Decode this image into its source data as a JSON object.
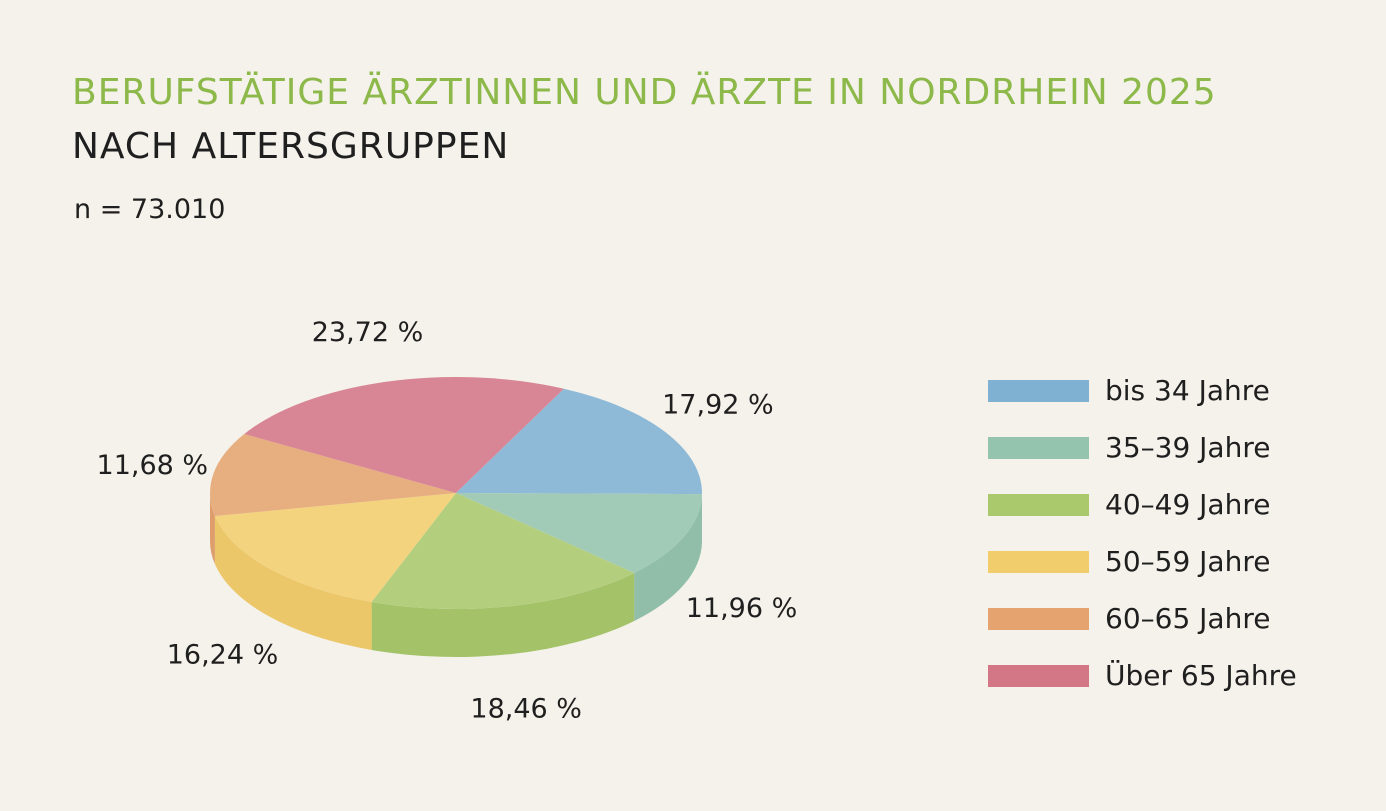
{
  "header": {
    "title": "BERUFSTÄTIGE ÄRZTINNEN UND ÄRZTE IN NORDRHEIN 2025",
    "subtitle": "NACH ALTERSGRUPPEN",
    "n_label": "n = 73.010"
  },
  "chart_data": {
    "type": "pie",
    "title": "BERUFSTÄTIGE ÄRZTINNEN UND ÄRZTE IN NORDRHEIN 2025",
    "subtitle": "NACH ALTERSGRUPPEN",
    "note": "n = 73.010",
    "style": "3d",
    "legend_position": "right",
    "categories": [
      "bis 34 Jahre",
      "35–39 Jahre",
      "40–49 Jahre",
      "50–59 Jahre",
      "60–65 Jahre",
      "Über 65 Jahre"
    ],
    "values": [
      17.92,
      11.96,
      18.46,
      16.24,
      11.68,
      23.72
    ],
    "value_labels": [
      "17,92 %",
      "11,96 %",
      "18,46 %",
      "16,24 %",
      "11,68 %",
      "23,72 %"
    ],
    "colors": [
      "#7fb1d3",
      "#94c4ad",
      "#a9c96c",
      "#f2cd6c",
      "#e4a36f",
      "#d37686"
    ]
  }
}
